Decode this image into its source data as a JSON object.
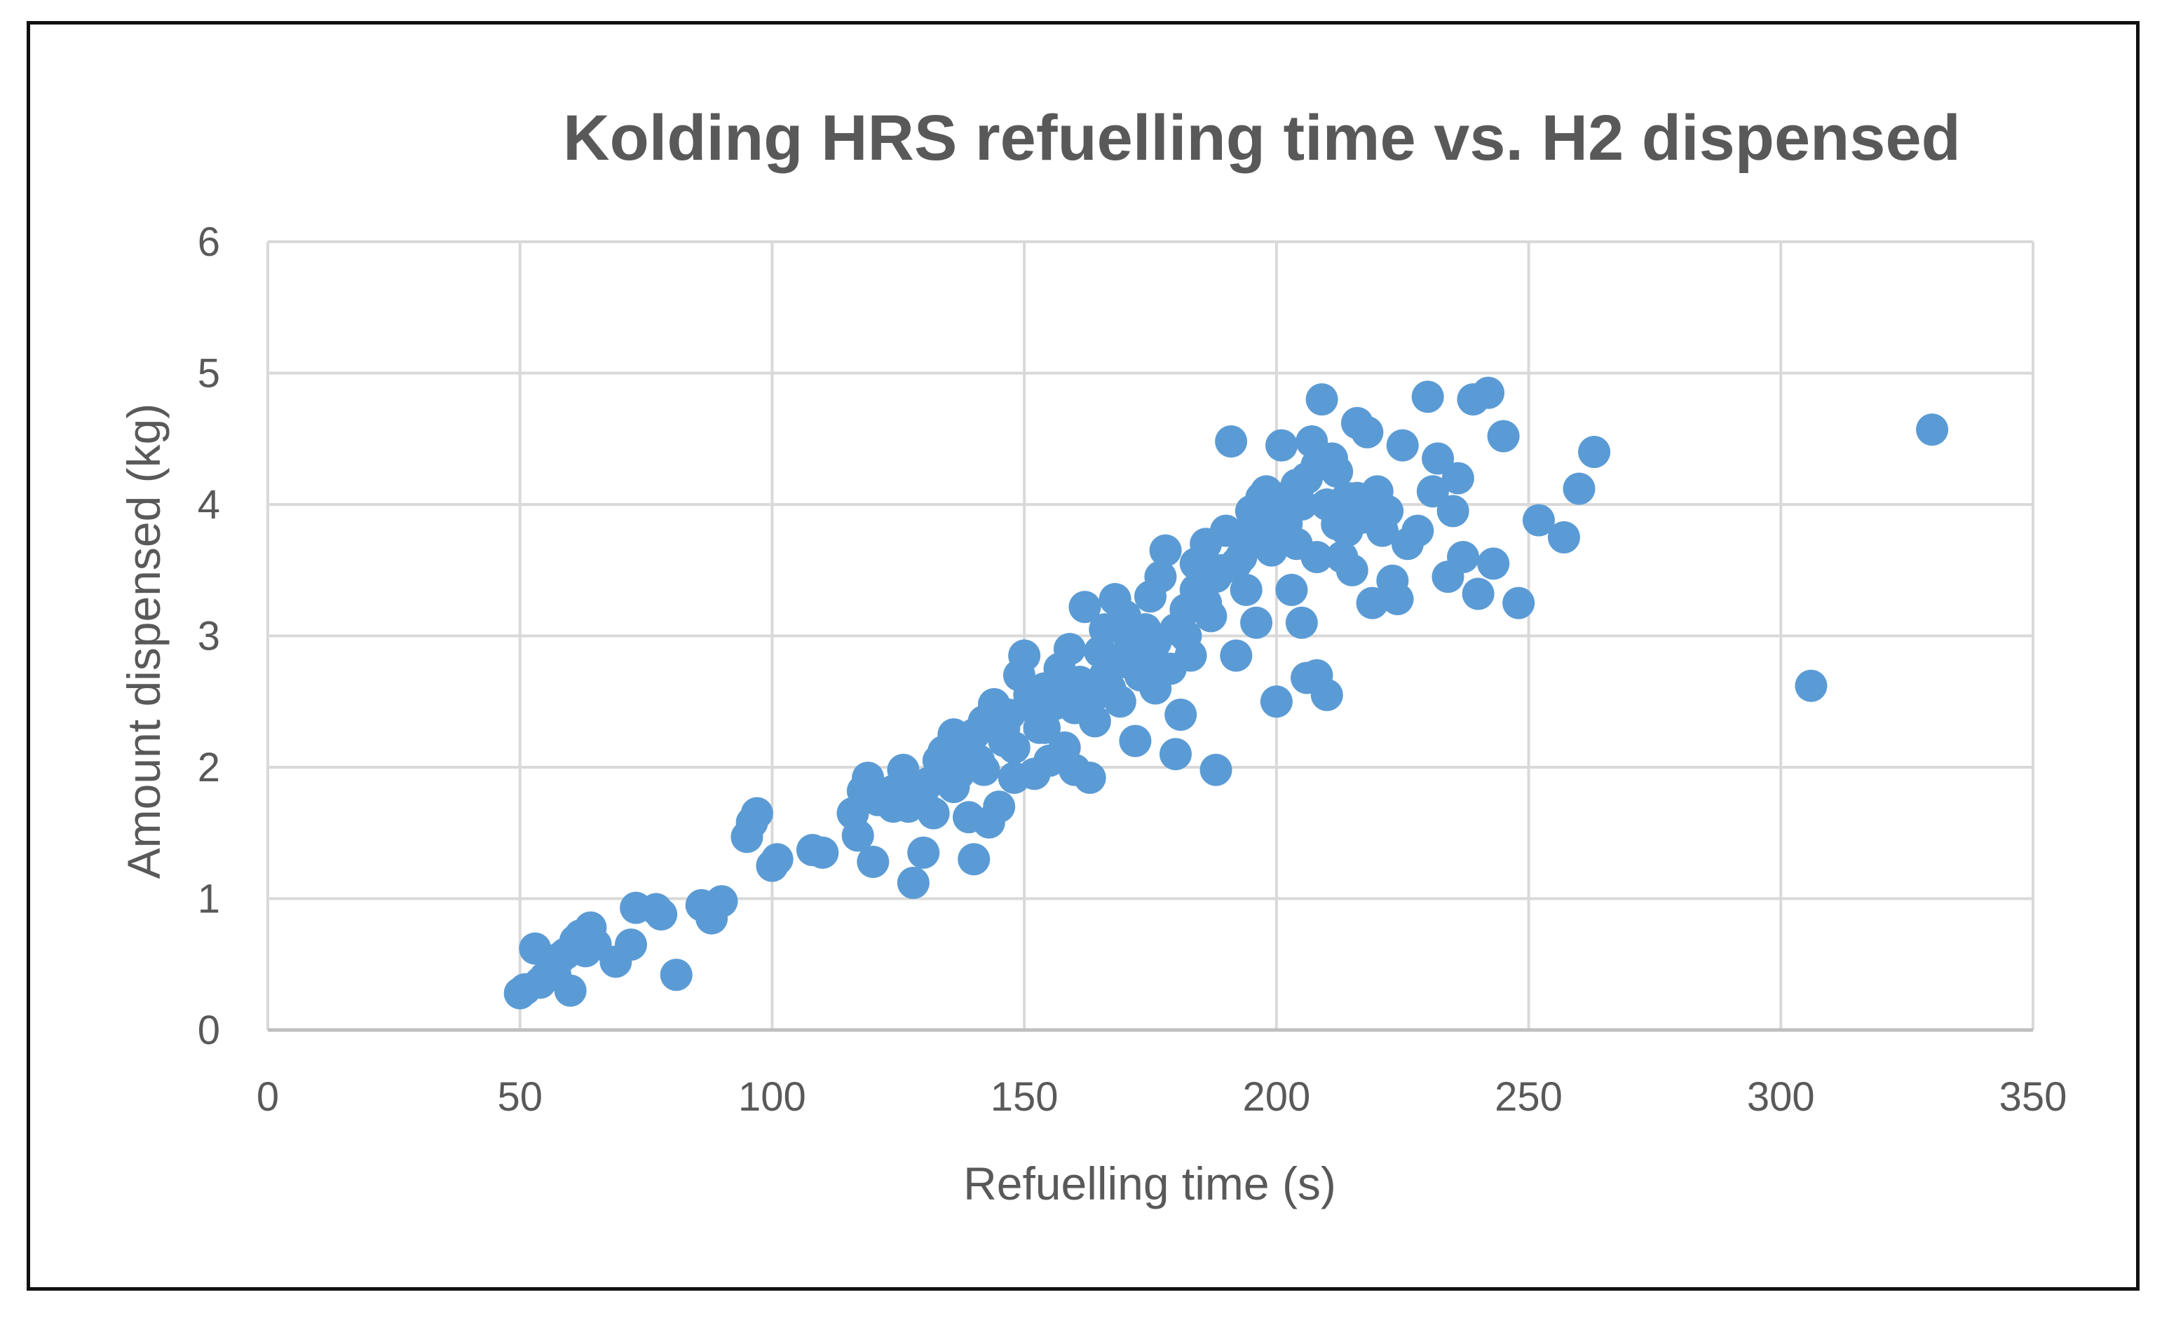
{
  "chart_data": {
    "type": "scatter",
    "title": "Kolding HRS refuelling time vs. H2 dispensed",
    "xlabel": "Refuelling time (s)",
    "ylabel": "Amount dispensed (kg)",
    "xlim": [
      0,
      350
    ],
    "ylim": [
      0,
      6
    ],
    "xticks": [
      "0",
      "50",
      "100",
      "150",
      "200",
      "250",
      "300",
      "350"
    ],
    "yticks": [
      "0",
      "1",
      "2",
      "3",
      "4",
      "5",
      "6"
    ],
    "grid": true,
    "marker_color": "#5B9BD5",
    "series": [
      {
        "points": [
          [
            50,
            0.28
          ],
          [
            51,
            0.31
          ],
          [
            53,
            0.62
          ],
          [
            54,
            0.36
          ],
          [
            55,
            0.4
          ],
          [
            57,
            0.42
          ],
          [
            58,
            0.55
          ],
          [
            59,
            0.58
          ],
          [
            60,
            0.3
          ],
          [
            61,
            0.68
          ],
          [
            62,
            0.72
          ],
          [
            63,
            0.6
          ],
          [
            64,
            0.78
          ],
          [
            65,
            0.65
          ],
          [
            69,
            0.52
          ],
          [
            72,
            0.65
          ],
          [
            73,
            0.93
          ],
          [
            77,
            0.92
          ],
          [
            78,
            0.88
          ],
          [
            81,
            0.42
          ],
          [
            86,
            0.95
          ],
          [
            88,
            0.85
          ],
          [
            90,
            0.98
          ],
          [
            95,
            1.47
          ],
          [
            96,
            1.58
          ],
          [
            97,
            1.65
          ],
          [
            100,
            1.25
          ],
          [
            101,
            1.3
          ],
          [
            108,
            1.37
          ],
          [
            110,
            1.35
          ],
          [
            116,
            1.65
          ],
          [
            117,
            1.48
          ],
          [
            118,
            1.82
          ],
          [
            119,
            1.92
          ],
          [
            120,
            1.28
          ],
          [
            121,
            1.75
          ],
          [
            124,
            1.82
          ],
          [
            126,
            1.98
          ],
          [
            127,
            1.7
          ],
          [
            128,
            1.12
          ],
          [
            129,
            1.78
          ],
          [
            130,
            1.35
          ],
          [
            131,
            1.88
          ],
          [
            132,
            1.65
          ],
          [
            133,
            2.05
          ],
          [
            134,
            2.12
          ],
          [
            135,
            1.98
          ],
          [
            136,
            2.25
          ],
          [
            137,
            1.95
          ],
          [
            138,
            2.15
          ],
          [
            139,
            1.62
          ],
          [
            140,
            1.3
          ],
          [
            141,
            2.05
          ],
          [
            142,
            2.35
          ],
          [
            143,
            1.58
          ],
          [
            144,
            2.48
          ],
          [
            145,
            1.7
          ],
          [
            146,
            2.2
          ],
          [
            147,
            2.4
          ],
          [
            148,
            1.92
          ],
          [
            149,
            2.7
          ],
          [
            150,
            2.85
          ],
          [
            151,
            2.55
          ],
          [
            152,
            1.95
          ],
          [
            153,
            2.3
          ],
          [
            154,
            2.6
          ],
          [
            155,
            2.05
          ],
          [
            156,
            2.48
          ],
          [
            157,
            2.75
          ],
          [
            158,
            2.15
          ],
          [
            159,
            2.9
          ],
          [
            160,
            1.98
          ],
          [
            161,
            2.65
          ],
          [
            162,
            3.22
          ],
          [
            163,
            1.92
          ],
          [
            164,
            2.35
          ],
          [
            165,
            2.88
          ],
          [
            166,
            3.05
          ],
          [
            167,
            2.6
          ],
          [
            168,
            3.28
          ],
          [
            169,
            2.5
          ],
          [
            170,
            3.15
          ],
          [
            171,
            2.95
          ],
          [
            172,
            2.2
          ],
          [
            173,
            2.7
          ],
          [
            174,
            3.05
          ],
          [
            175,
            3.3
          ],
          [
            176,
            2.6
          ],
          [
            177,
            3.45
          ],
          [
            178,
            3.65
          ],
          [
            179,
            2.75
          ],
          [
            180,
            2.1
          ],
          [
            181,
            2.4
          ],
          [
            182,
            3.2
          ],
          [
            183,
            2.85
          ],
          [
            184,
            3.55
          ],
          [
            185,
            3.4
          ],
          [
            186,
            3.7
          ],
          [
            187,
            3.15
          ],
          [
            188,
            1.98
          ],
          [
            189,
            3.5
          ],
          [
            190,
            3.8
          ],
          [
            191,
            4.48
          ],
          [
            192,
            2.85
          ],
          [
            193,
            3.6
          ],
          [
            194,
            3.35
          ],
          [
            195,
            3.95
          ],
          [
            196,
            3.1
          ],
          [
            197,
            3.75
          ],
          [
            198,
            4.1
          ],
          [
            199,
            3.65
          ],
          [
            200,
            2.5
          ],
          [
            201,
            4.45
          ],
          [
            202,
            3.9
          ],
          [
            203,
            3.35
          ],
          [
            204,
            4.15
          ],
          [
            205,
            3.1
          ],
          [
            206,
            2.68
          ],
          [
            207,
            4.48
          ],
          [
            208,
            2.7
          ],
          [
            209,
            4.8
          ],
          [
            210,
            2.55
          ],
          [
            211,
            4.35
          ],
          [
            212,
            3.85
          ],
          [
            213,
            3.6
          ],
          [
            214,
            4.05
          ],
          [
            215,
            3.5
          ],
          [
            216,
            4.62
          ],
          [
            217,
            3.9
          ],
          [
            218,
            4.55
          ],
          [
            219,
            3.25
          ],
          [
            220,
            4.1
          ],
          [
            221,
            3.8
          ],
          [
            222,
            3.95
          ],
          [
            224,
            3.28
          ],
          [
            225,
            4.45
          ],
          [
            226,
            3.7
          ],
          [
            228,
            3.8
          ],
          [
            230,
            4.82
          ],
          [
            231,
            4.1
          ],
          [
            232,
            4.35
          ],
          [
            234,
            3.45
          ],
          [
            235,
            3.95
          ],
          [
            236,
            4.2
          ],
          [
            237,
            3.6
          ],
          [
            239,
            4.8
          ],
          [
            240,
            3.32
          ],
          [
            242,
            4.85
          ],
          [
            243,
            3.55
          ],
          [
            245,
            4.52
          ],
          [
            248,
            3.25
          ],
          [
            252,
            3.88
          ],
          [
            257,
            3.75
          ],
          [
            260,
            4.12
          ],
          [
            263,
            4.4
          ],
          [
            306,
            2.62
          ],
          [
            330,
            4.57
          ],
          [
            204,
            3.7
          ],
          [
            206,
            4.2
          ],
          [
            208,
            3.6
          ],
          [
            210,
            4.0
          ],
          [
            212,
            4.25
          ],
          [
            196,
            3.9
          ],
          [
            192,
            3.55
          ],
          [
            186,
            3.25
          ],
          [
            180,
            3.05
          ],
          [
            174,
            2.85
          ],
          [
            166,
            2.7
          ],
          [
            160,
            2.45
          ],
          [
            154,
            2.3
          ],
          [
            148,
            2.15
          ],
          [
            142,
            1.98
          ],
          [
            136,
            1.85
          ],
          [
            200,
            4.05
          ],
          [
            198,
            3.8
          ],
          [
            214,
            3.8
          ],
          [
            220,
            3.95
          ],
          [
            223,
            3.42
          ],
          [
            216,
            4.05
          ],
          [
            188,
            3.45
          ],
          [
            182,
            3.0
          ],
          [
            176,
            2.95
          ],
          [
            170,
            2.8
          ],
          [
            164,
            2.55
          ],
          [
            158,
            2.65
          ],
          [
            152,
            2.45
          ],
          [
            146,
            2.3
          ],
          [
            140,
            2.25
          ],
          [
            134,
            1.95
          ],
          [
            130,
            1.72
          ],
          [
            124,
            1.7
          ],
          [
            194,
            3.75
          ],
          [
            202,
            3.85
          ],
          [
            208,
            4.3
          ],
          [
            205,
            4.0
          ],
          [
            197,
            4.05
          ],
          [
            184,
            3.35
          ]
        ]
      }
    ]
  }
}
